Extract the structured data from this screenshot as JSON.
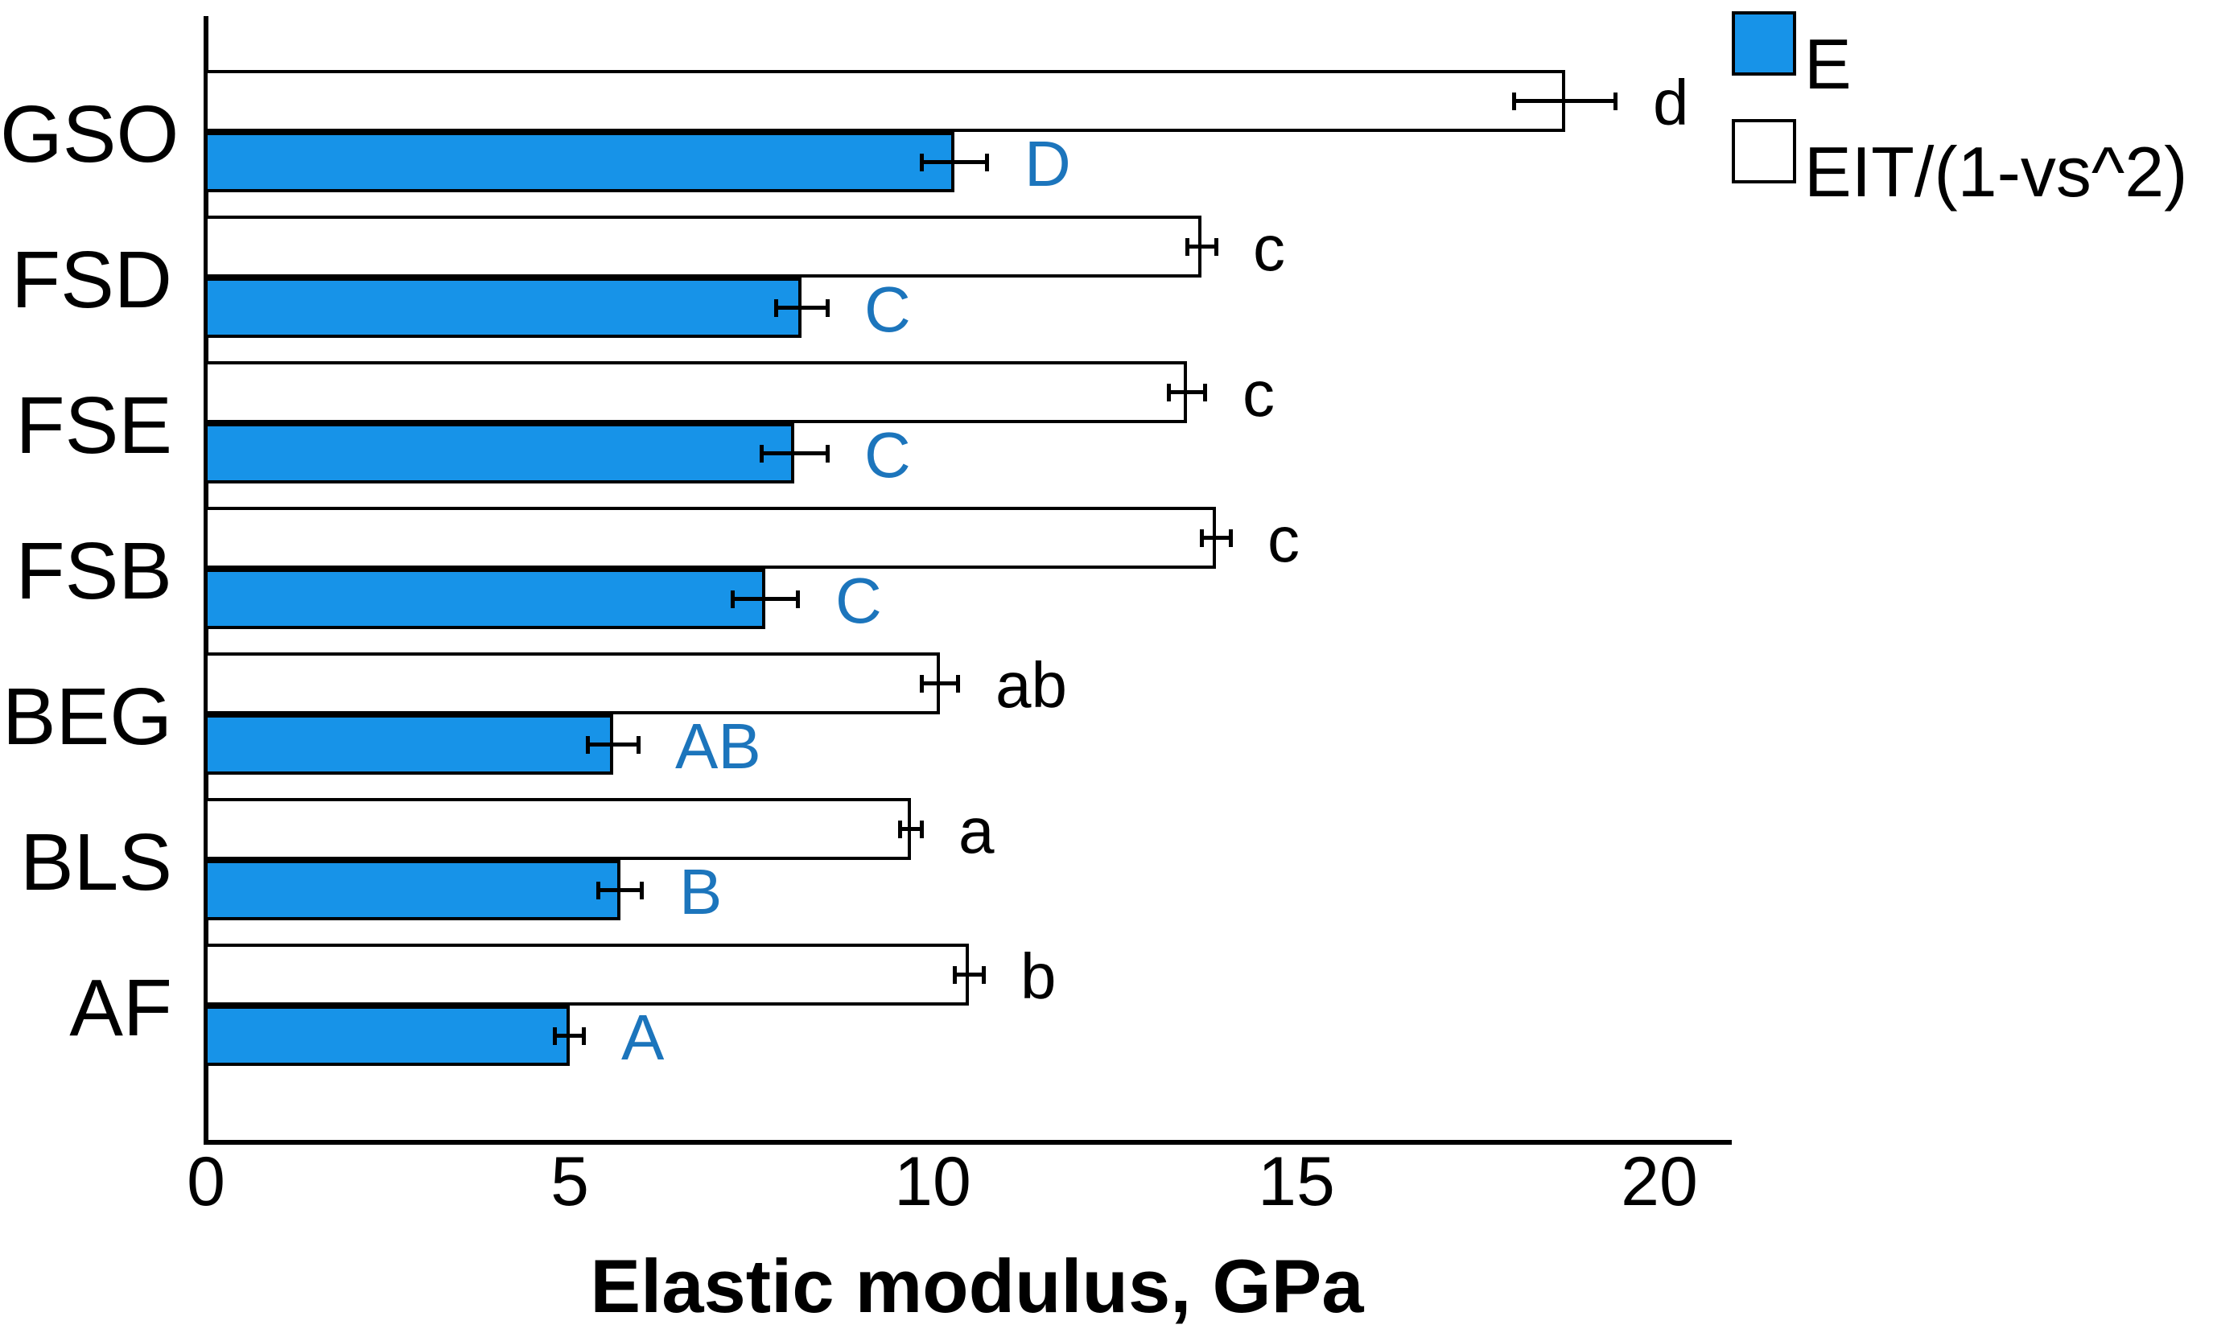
{
  "figure": {
    "background": "#ffffff",
    "axis_color": "#000000"
  },
  "chart_data": {
    "type": "bar",
    "orientation": "horizontal",
    "title": "",
    "xlabel": "Elastic modulus, GPa",
    "ylabel": "",
    "categories": [
      "GSO",
      "FSD",
      "FSE",
      "FSB",
      "BEG",
      "BLS",
      "AF"
    ],
    "series": [
      {
        "name": "E",
        "color": "#1793E8",
        "edge_color": "#000000",
        "values": [
          10.3,
          8.2,
          8.1,
          7.7,
          5.6,
          5.7,
          5.0
        ],
        "errors": [
          0.45,
          0.35,
          0.45,
          0.45,
          0.35,
          0.3,
          0.2
        ],
        "sig_labels": [
          "D",
          "C",
          "C",
          "C",
          "AB",
          "B",
          "A"
        ],
        "sig_label_color": "#1C75BC"
      },
      {
        "name": "EIT/(1-vs^2)",
        "color": "#FFFFFF",
        "edge_color": "#000000",
        "values": [
          18.7,
          13.7,
          13.5,
          13.9,
          10.1,
          9.7,
          10.5
        ],
        "errors": [
          0.7,
          0.2,
          0.25,
          0.2,
          0.25,
          0.15,
          0.2
        ],
        "sig_labels": [
          "d",
          "c",
          "c",
          "c",
          "ab",
          "a",
          "b"
        ],
        "sig_label_color": "#000000"
      }
    ],
    "xticks": [
      0,
      5,
      10,
      15,
      20
    ],
    "xtick_labels": [
      "0",
      "5",
      "10",
      "15",
      "20"
    ],
    "xlim": [
      0,
      21
    ],
    "grid": false,
    "legend_position": "top-right",
    "error_bar_color": "#000000"
  }
}
